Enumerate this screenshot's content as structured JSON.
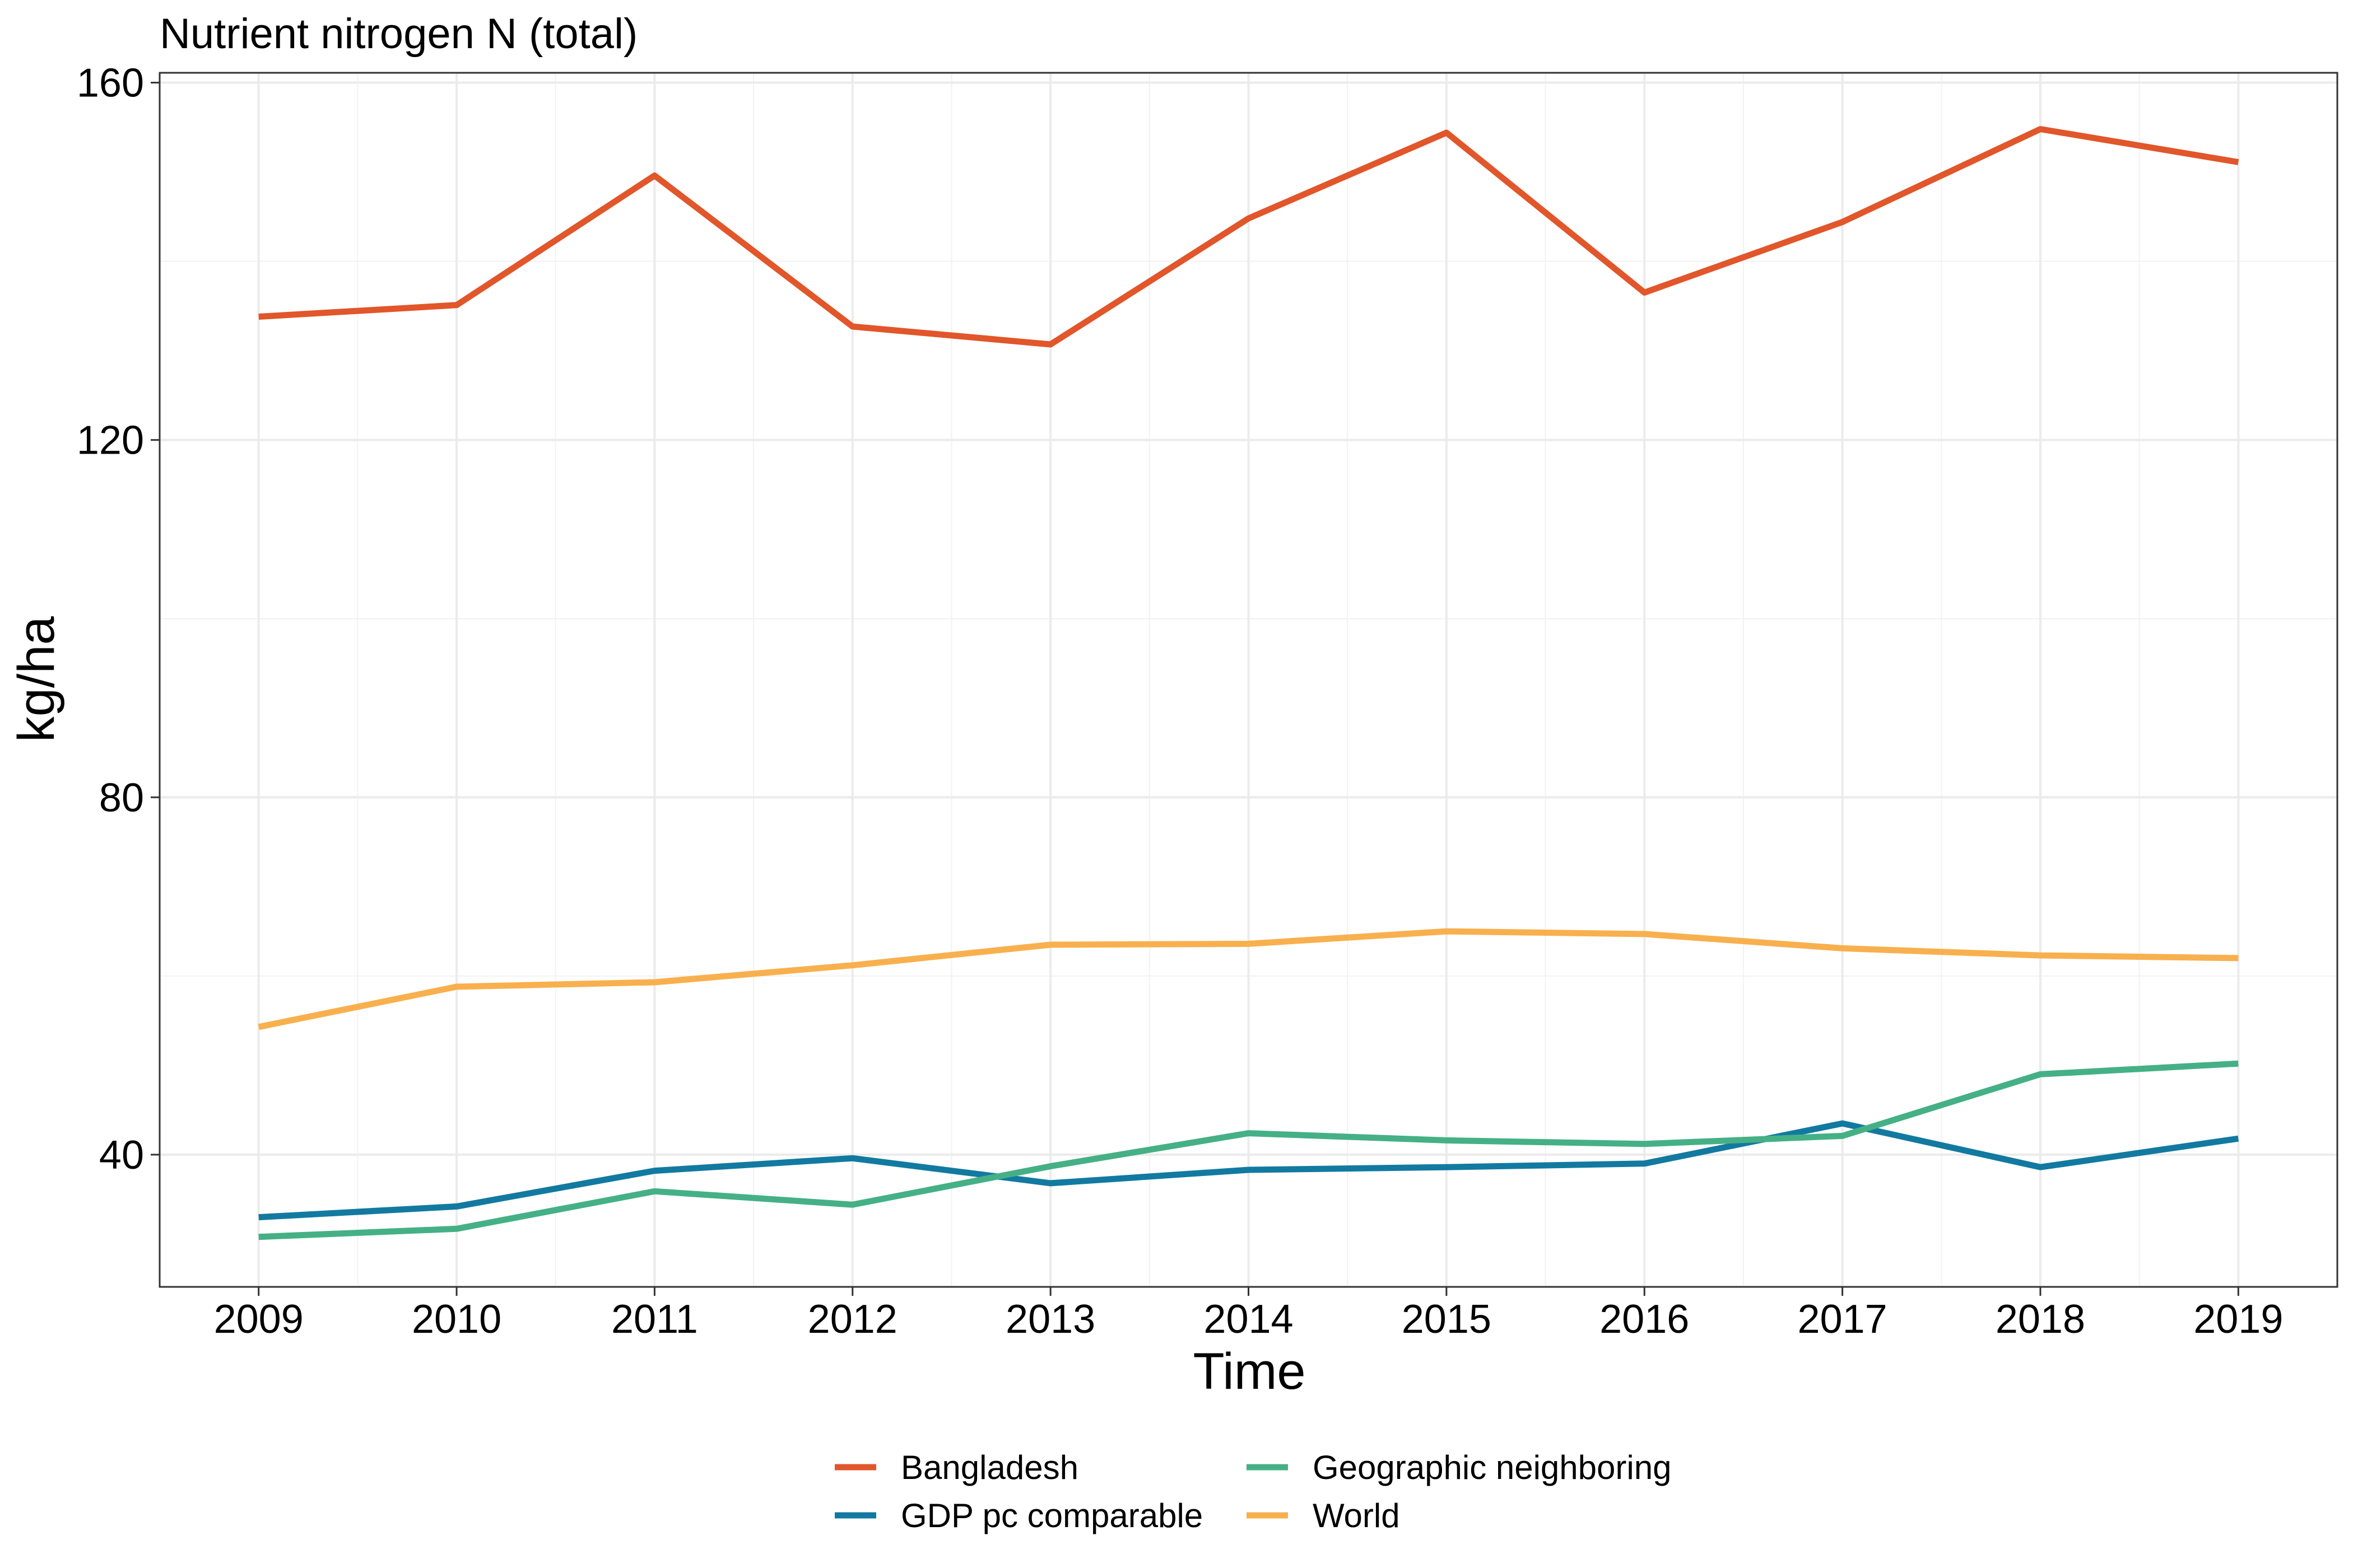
{
  "chart_data": {
    "type": "line",
    "title": "Nutrient nitrogen N (total)",
    "xlabel": "Time",
    "ylabel": "kg/ha",
    "x": [
      2009,
      2010,
      2011,
      2012,
      2013,
      2014,
      2015,
      2016,
      2017,
      2018,
      2019
    ],
    "x_tick_labels": [
      "2009",
      "2010",
      "2011",
      "2012",
      "2013",
      "2014",
      "2015",
      "2016",
      "2017",
      "2018",
      "2019"
    ],
    "y_ticks": [
      40,
      80,
      120,
      160
    ],
    "y_tick_labels": [
      "40",
      "80",
      "120",
      "160"
    ],
    "ylim": [
      25.2,
      161.1
    ],
    "xlim": [
      2008.5,
      2019.5
    ],
    "grid": true,
    "legend_position": "bottom",
    "series": [
      {
        "name": "Bangladesh",
        "color": "#E1562A",
        "values": [
          133.8,
          135.1,
          149.6,
          132.7,
          130.7,
          144.8,
          154.4,
          136.5,
          144.4,
          154.8,
          151.1
        ]
      },
      {
        "name": "GDP pc comparable",
        "color": "#127AA0",
        "values": [
          33.0,
          34.2,
          38.2,
          39.6,
          36.8,
          38.3,
          38.6,
          39.0,
          43.5,
          38.6,
          41.8
        ]
      },
      {
        "name": "Geographic neighboring",
        "color": "#45B086",
        "values": [
          30.8,
          31.7,
          35.9,
          34.4,
          38.7,
          42.4,
          41.6,
          41.2,
          42.1,
          49.0,
          50.2
        ]
      },
      {
        "name": "World",
        "color": "#F8B04E",
        "values": [
          54.3,
          58.8,
          59.3,
          61.2,
          63.5,
          63.6,
          65.0,
          64.7,
          63.1,
          62.3,
          62.0
        ]
      }
    ]
  }
}
